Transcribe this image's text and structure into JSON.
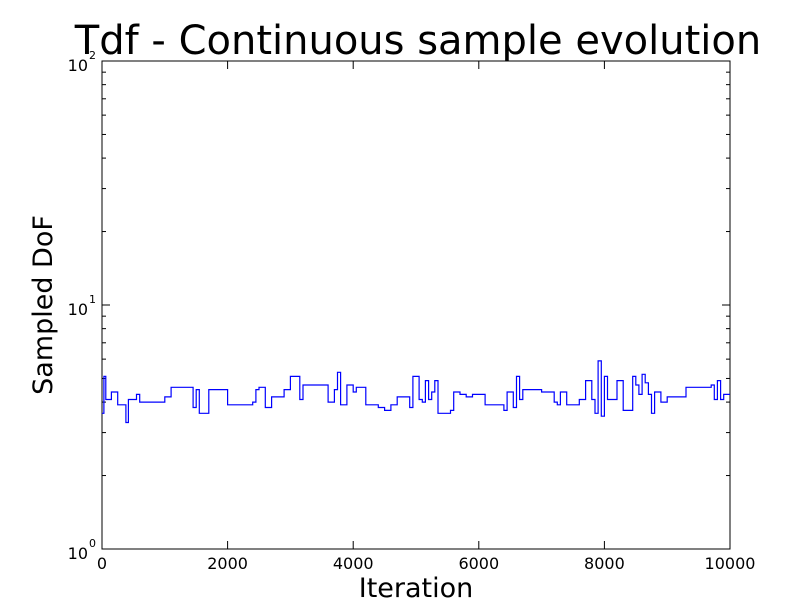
{
  "chart_data": {
    "type": "line",
    "title": "Tdf - Continuous sample evolution",
    "xlabel": "Iteration",
    "ylabel": "Sampled DoF",
    "xlim": [
      0,
      10000
    ],
    "ylim": [
      1,
      100
    ],
    "yscale": "log",
    "grid": false,
    "line_color": "#0000ff",
    "x_ticks": [
      0,
      2000,
      4000,
      6000,
      8000,
      10000
    ],
    "x_tick_labels": [
      "0",
      "2000",
      "4000",
      "6000",
      "8000",
      "10000"
    ],
    "y_ticks": [
      1,
      10,
      100
    ],
    "y_tick_labels": [
      {
        "base": "10",
        "exp": "0"
      },
      {
        "base": "10",
        "exp": "1"
      },
      {
        "base": "10",
        "exp": "2"
      }
    ],
    "series": [
      {
        "x": [
          0,
          30,
          60,
          90,
          150,
          250,
          300,
          380,
          420,
          450,
          500,
          550,
          600,
          700,
          800,
          900,
          1000,
          1100,
          1200,
          1450,
          1500,
          1550,
          1600,
          1700,
          1800,
          1900,
          2000,
          2100,
          2200,
          2300,
          2400,
          2450,
          2500,
          2550,
          2600,
          2700,
          2800,
          2900,
          3000,
          3050,
          3100,
          3150,
          3200,
          3250,
          3300,
          3350,
          3450,
          3600,
          3700,
          3750,
          3800,
          3900,
          4000,
          4050,
          4100,
          4200,
          4300,
          4400,
          4500,
          4600,
          4700,
          4750,
          4800,
          4900,
          4950,
          5000,
          5050,
          5100,
          5150,
          5200,
          5250,
          5300,
          5350,
          5450,
          5550,
          5600,
          5700,
          5800,
          5900,
          6000,
          6100,
          6200,
          6300,
          6400,
          6450,
          6500,
          6550,
          6600,
          6650,
          6700,
          6800,
          6900,
          7000,
          7100,
          7200,
          7250,
          7300,
          7350,
          7400,
          7500,
          7600,
          7700,
          7800,
          7850,
          7900,
          7950,
          8000,
          8050,
          8100,
          8150,
          8200,
          8300,
          8400,
          8450,
          8500,
          8550,
          8600,
          8650,
          8700,
          8750,
          8800,
          8850,
          8900,
          9000,
          9100,
          9200,
          9300,
          9400,
          9500,
          9600,
          9700,
          9750,
          9800,
          9850,
          9900,
          10000
        ],
        "y": [
          3.6,
          5.1,
          4.1,
          4.1,
          4.4,
          3.9,
          3.9,
          3.3,
          4.1,
          4.1,
          4.1,
          4.3,
          4.0,
          4.0,
          4.0,
          4.0,
          4.2,
          4.6,
          4.6,
          3.8,
          4.5,
          3.6,
          3.6,
          4.5,
          4.5,
          4.5,
          3.9,
          3.9,
          3.9,
          3.9,
          4.0,
          4.5,
          4.6,
          4.6,
          3.8,
          4.2,
          4.2,
          4.5,
          5.1,
          5.1,
          5.1,
          4.1,
          4.7,
          4.7,
          4.7,
          4.7,
          4.7,
          4.0,
          4.5,
          5.3,
          3.9,
          4.7,
          4.4,
          4.6,
          4.6,
          3.9,
          3.9,
          3.8,
          3.7,
          3.9,
          4.2,
          4.2,
          4.2,
          3.8,
          5.1,
          5.1,
          4.1,
          4.0,
          4.9,
          4.1,
          4.4,
          4.9,
          3.6,
          3.6,
          3.7,
          4.4,
          4.3,
          4.2,
          4.3,
          4.3,
          3.9,
          3.9,
          3.9,
          3.7,
          4.4,
          4.4,
          3.8,
          5.1,
          4.1,
          4.5,
          4.5,
          4.5,
          4.4,
          4.4,
          4.0,
          3.9,
          4.4,
          4.4,
          3.9,
          3.9,
          4.1,
          4.9,
          4.1,
          3.6,
          5.9,
          3.5,
          5.1,
          4.1,
          4.1,
          4.1,
          4.9,
          3.7,
          3.7,
          5.1,
          4.7,
          4.3,
          5.2,
          4.8,
          4.3,
          3.6,
          4.4,
          4.4,
          4.0,
          4.2,
          4.2,
          4.2,
          4.6,
          4.6,
          4.6,
          4.6,
          4.7,
          4.1,
          4.9,
          4.1,
          4.3,
          4.3
        ]
      }
    ]
  }
}
